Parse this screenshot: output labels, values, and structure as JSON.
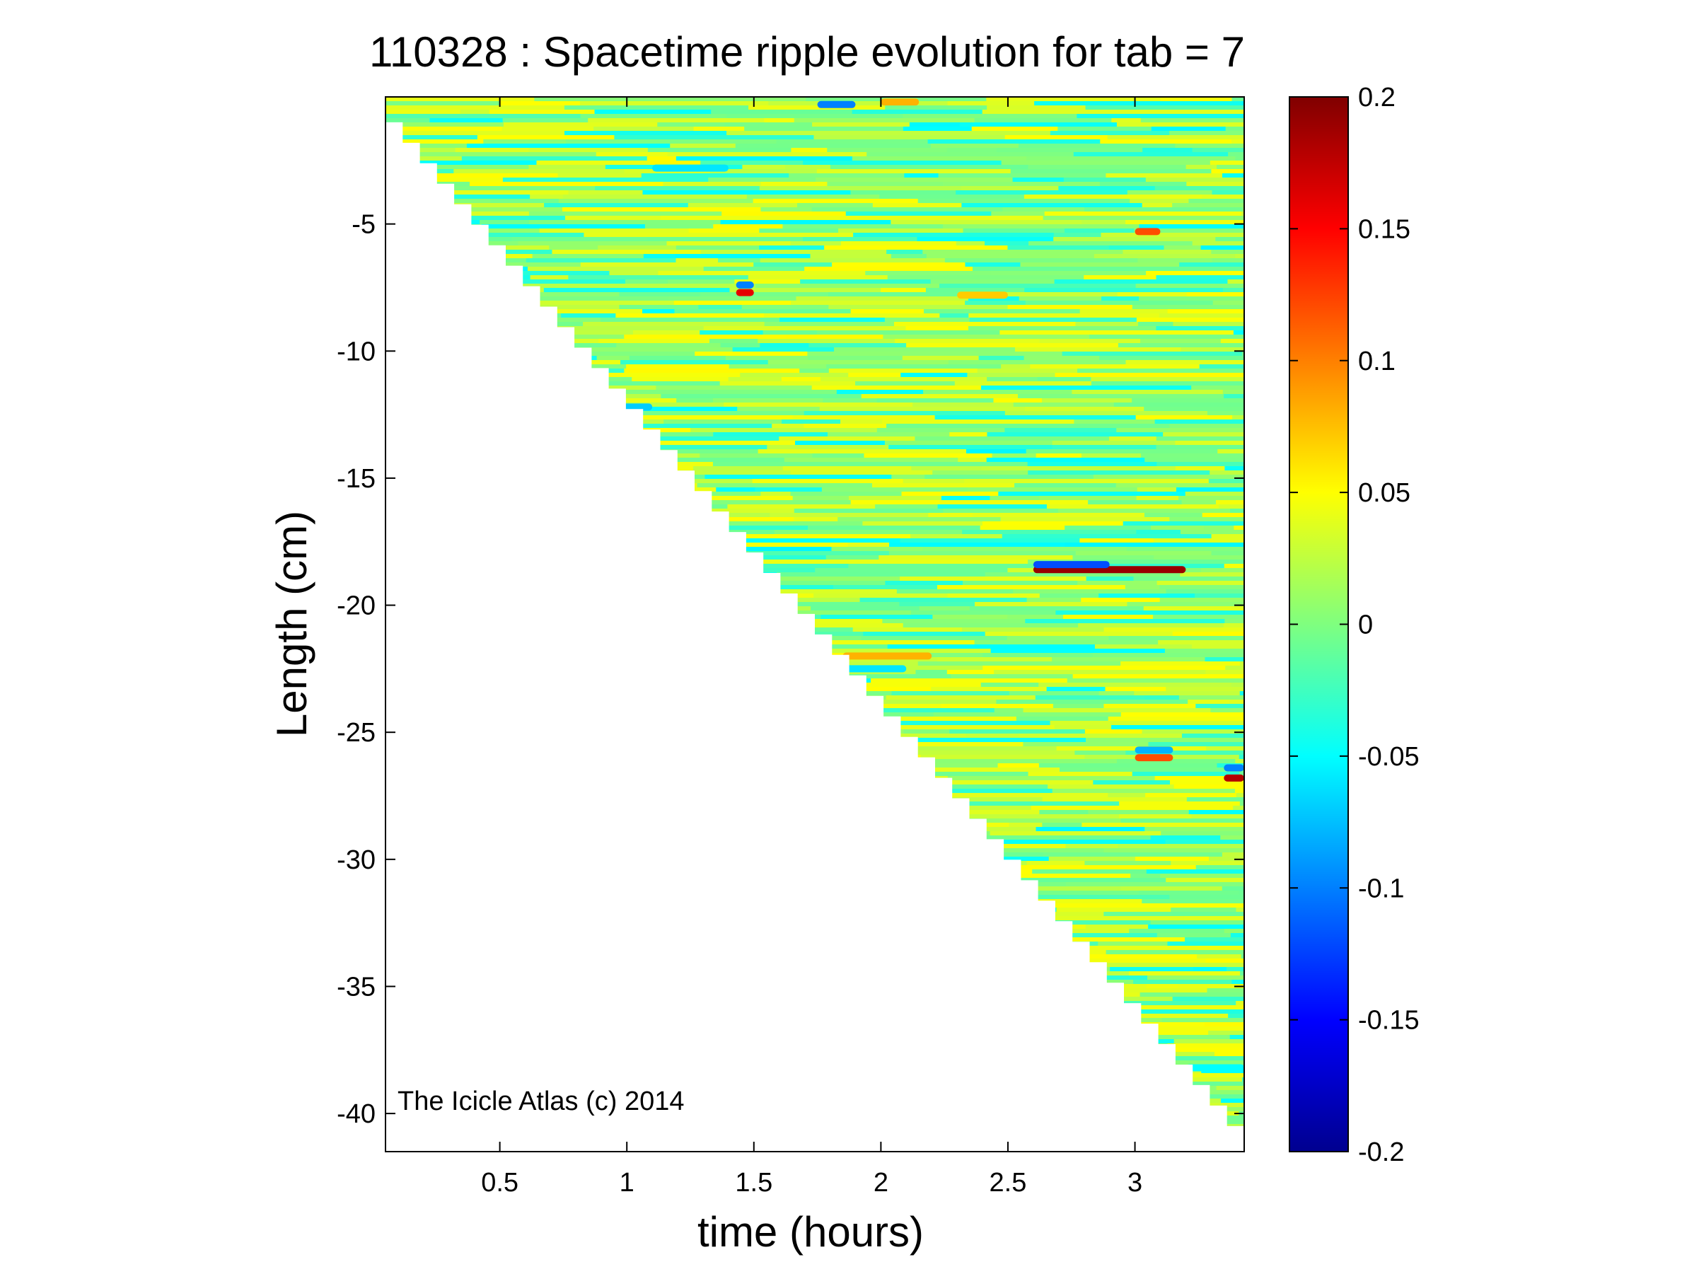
{
  "chart_data": {
    "type": "heatmap",
    "title": "110328 : Spacetime ripple evolution for tab = 7",
    "xlabel": "time (hours)",
    "ylabel": "Length (cm)",
    "xlim": [
      0.05,
      3.43
    ],
    "ylim": [
      -41.5,
      0.0
    ],
    "xticks": [
      0.5,
      1,
      1.5,
      2,
      2.5,
      3
    ],
    "xtick_labels": [
      "0.5",
      "1",
      "1.5",
      "2",
      "2.5",
      "3"
    ],
    "yticks": [
      -5,
      -10,
      -15,
      -20,
      -25,
      -30,
      -35,
      -40
    ],
    "ytick_labels": [
      "-5",
      "-10",
      "-15",
      "-20",
      "-25",
      "-30",
      "-35",
      "-40"
    ],
    "colorbar": {
      "range": [
        -0.2,
        0.2
      ],
      "colormap": "jet",
      "ticks": [
        0.2,
        0.15,
        0.1,
        0.05,
        0,
        -0.05,
        -0.1,
        -0.15,
        -0.2
      ],
      "tick_labels": [
        "0.2",
        "0.15",
        "0.1",
        "0.05",
        "0",
        "-0.05",
        "-0.1",
        "-0.15",
        "-0.2"
      ]
    },
    "data_region": {
      "description_kind": "lower-triangle-empty",
      "boundary": [
        [
          0.05,
          -1.0
        ],
        [
          3.43,
          -41.3
        ]
      ],
      "background_value": 0.0
    },
    "features": [
      {
        "t_start": 2.6,
        "t_end": 3.2,
        "length": -18.6,
        "value": 0.19
      },
      {
        "t_start": 2.6,
        "t_end": 2.9,
        "length": -18.4,
        "value": -0.12
      },
      {
        "t_start": 3.35,
        "t_end": 3.43,
        "length": -26.8,
        "value": 0.18
      },
      {
        "t_start": 3.35,
        "t_end": 3.43,
        "length": -26.4,
        "value": -0.1
      },
      {
        "t_start": 3.0,
        "t_end": 3.15,
        "length": -26.0,
        "value": 0.12
      },
      {
        "t_start": 3.0,
        "t_end": 3.15,
        "length": -25.7,
        "value": -0.08
      },
      {
        "t_start": 1.43,
        "t_end": 1.5,
        "length": -7.7,
        "value": 0.16
      },
      {
        "t_start": 1.43,
        "t_end": 1.5,
        "length": -7.4,
        "value": -0.1
      },
      {
        "t_start": 1.85,
        "t_end": 2.2,
        "length": -22.0,
        "value": 0.08
      },
      {
        "t_start": 1.85,
        "t_end": 2.1,
        "length": -22.5,
        "value": -0.06
      },
      {
        "t_start": 3.0,
        "t_end": 3.1,
        "length": -5.3,
        "value": 0.12
      },
      {
        "t_start": 1.1,
        "t_end": 1.4,
        "length": -2.8,
        "value": -0.06
      },
      {
        "t_start": 0.9,
        "t_end": 1.1,
        "length": -12.2,
        "value": -0.07
      },
      {
        "t_start": 2.3,
        "t_end": 2.5,
        "length": -7.8,
        "value": 0.07
      },
      {
        "t_start": 3.2,
        "t_end": 3.43,
        "length": -38.2,
        "value": -0.05
      },
      {
        "t_start": 1.75,
        "t_end": 1.9,
        "length": -0.3,
        "value": -0.1
      },
      {
        "t_start": 2.0,
        "t_end": 2.15,
        "length": -0.2,
        "value": 0.08
      }
    ]
  },
  "watermark": "The Icicle Atlas (c) 2014"
}
